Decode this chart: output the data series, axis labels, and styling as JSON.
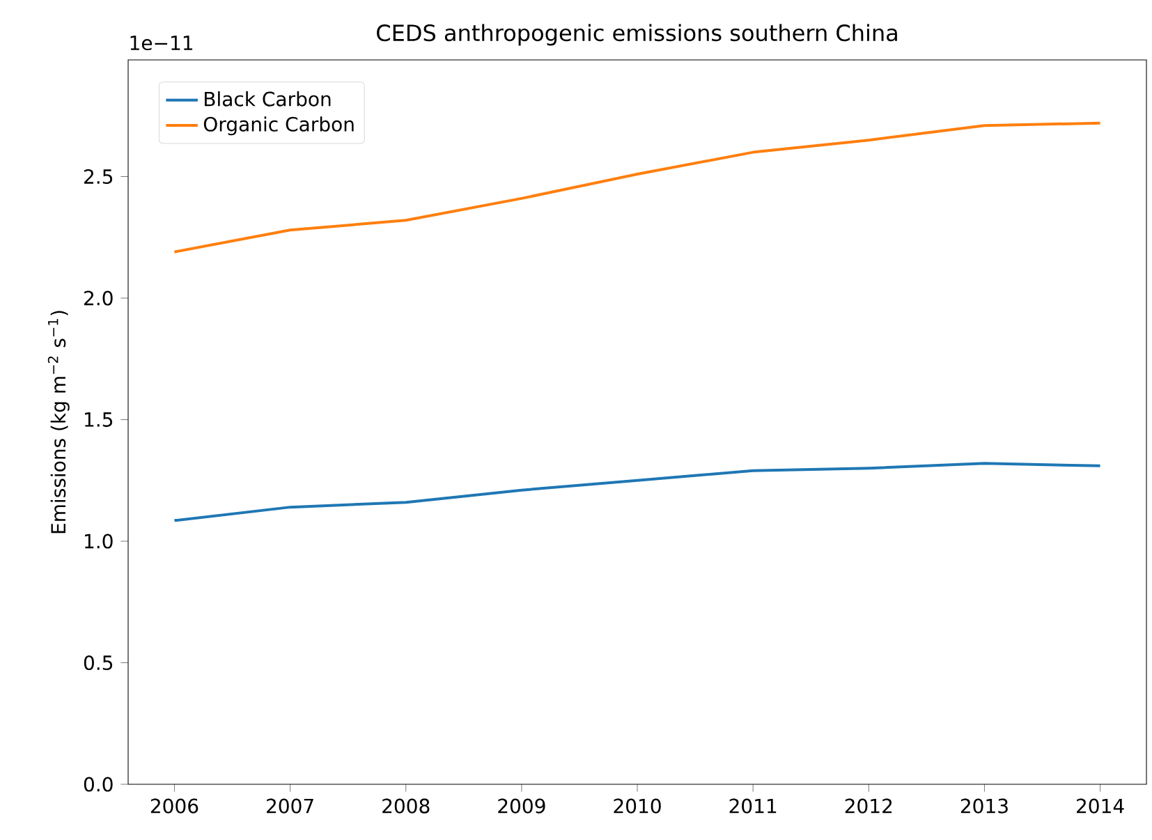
{
  "chart_data": {
    "type": "line",
    "title": "CEDS anthropogenic emissions southern China",
    "ylabel": "Emissions (kg m$^{−2}$ s$^{−1}$)",
    "annotations": [
      "1e−11"
    ],
    "x": [
      2006,
      2007,
      2008,
      2009,
      2010,
      2011,
      2012,
      2013,
      2014
    ],
    "series": [
      {
        "name": "Black Carbon",
        "color": "#1f77b4",
        "values": [
          1.085,
          1.14,
          1.16,
          1.21,
          1.25,
          1.29,
          1.3,
          1.32,
          1.31
        ]
      },
      {
        "name": "Organic Carbon",
        "color": "#ff7f0e",
        "values": [
          2.19,
          2.28,
          2.32,
          2.41,
          2.51,
          2.6,
          2.65,
          2.71,
          2.72
        ]
      }
    ],
    "xlim": [
      2005.6,
      2014.4
    ],
    "ylim": [
      0,
      2.98
    ],
    "xticks": [
      2006,
      2007,
      2008,
      2009,
      2010,
      2011,
      2012,
      2013,
      2014
    ],
    "yticks": [
      {
        "value": 0,
        "label": "0.0"
      },
      {
        "value": 0.5,
        "label": "0.5"
      },
      {
        "value": 1.0,
        "label": "1.0"
      },
      {
        "value": 1.5,
        "label": "1.5"
      },
      {
        "value": 2.0,
        "label": "2.0"
      },
      {
        "value": 2.5,
        "label": "2.5"
      }
    ],
    "legend": "top left",
    "grid": false,
    "marker": "none",
    "line_style": "solid"
  }
}
